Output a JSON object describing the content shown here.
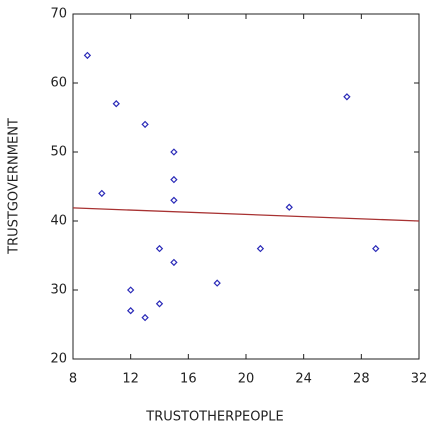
{
  "chart_data": {
    "type": "scatter",
    "x_label": "TRUSTOTHERPEOPLE",
    "y_label": "TRUSTGOVERNMENT",
    "x": [
      9,
      11,
      13,
      15,
      15,
      10,
      15,
      27,
      23,
      14,
      21,
      29,
      15,
      18,
      12,
      14,
      12,
      13
    ],
    "values": [
      64,
      57,
      54,
      50,
      46,
      44,
      43,
      58,
      42,
      36,
      36,
      36,
      34,
      31,
      30,
      28,
      27,
      26
    ],
    "color": "#2b2bb8",
    "fit_line": {
      "x": [
        8,
        32
      ],
      "values": [
        41.9,
        40.0
      ],
      "color": "#a83232"
    },
    "xlim": [
      8,
      32
    ],
    "xticks": [
      8,
      12,
      16,
      20,
      24,
      28,
      32
    ],
    "ylim": [
      20,
      70
    ],
    "yticks": [
      20,
      30,
      40,
      50,
      60,
      70
    ],
    "grid": false
  }
}
